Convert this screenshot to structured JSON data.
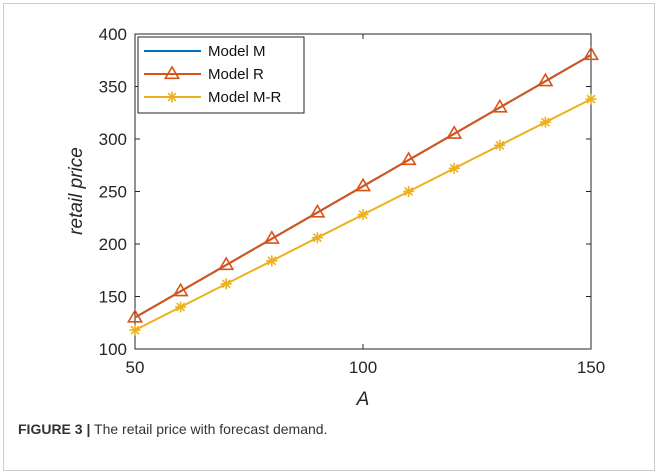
{
  "caption": {
    "label": "FIGURE 3 |",
    "text": " The retail price with forecast demand."
  },
  "chart_data": {
    "type": "line",
    "title": "",
    "xlabel": "A",
    "ylabel": "retail price",
    "xlim": [
      50,
      150
    ],
    "ylim": [
      100,
      400
    ],
    "x_ticks": [
      50,
      100,
      150
    ],
    "y_ticks": [
      100,
      150,
      200,
      250,
      300,
      350,
      400
    ],
    "x": [
      50,
      60,
      70,
      80,
      90,
      100,
      110,
      120,
      130,
      140,
      150
    ],
    "series": [
      {
        "name": "Model M",
        "color": "#0072BD",
        "marker": "none",
        "values": [
          130,
          155,
          180,
          205,
          230,
          255,
          280,
          305,
          330,
          355,
          380
        ]
      },
      {
        "name": "Model R",
        "color": "#D95319",
        "marker": "triangle",
        "values": [
          130,
          155,
          180,
          205,
          230,
          255,
          280,
          305,
          330,
          355,
          380
        ]
      },
      {
        "name": "Model M-R",
        "color": "#EDB120",
        "marker": "asterisk",
        "values": [
          118,
          140,
          162,
          184,
          206,
          228,
          250,
          272,
          294,
          316,
          338
        ]
      }
    ],
    "legend_position": "top-left",
    "grid": false
  }
}
